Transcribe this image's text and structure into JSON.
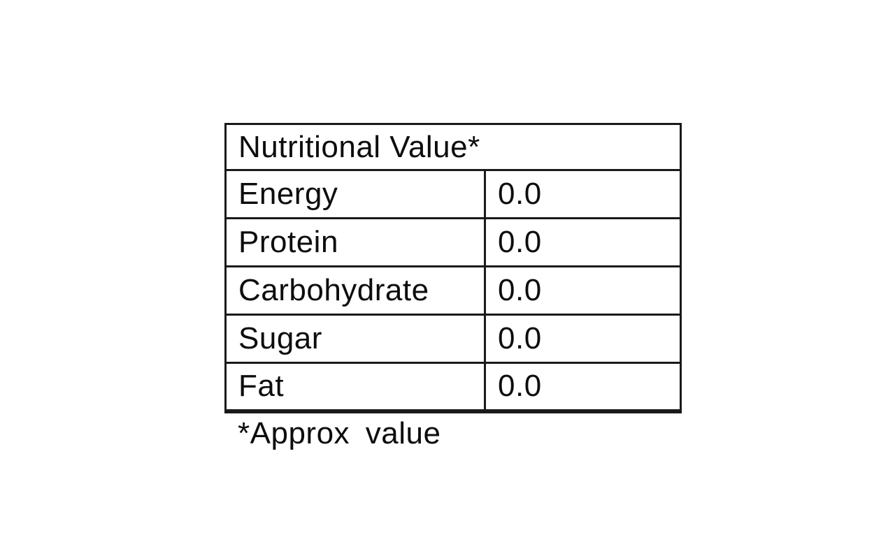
{
  "document": {
    "table": {
      "header": "Nutritional Value*",
      "rows": [
        {
          "label": "Energy",
          "value": "0.0"
        },
        {
          "label": "Protein",
          "value": "0.0"
        },
        {
          "label": "Carbohydrate",
          "value": "0.0"
        },
        {
          "label": "Sugar",
          "value": "0.0"
        },
        {
          "label": "Fat",
          "value": "0.0"
        }
      ],
      "footnote": "*Approx value"
    },
    "colors": {
      "background": "#ffffff",
      "border": "#1a1a1a",
      "text": "#0d0d0d"
    }
  }
}
